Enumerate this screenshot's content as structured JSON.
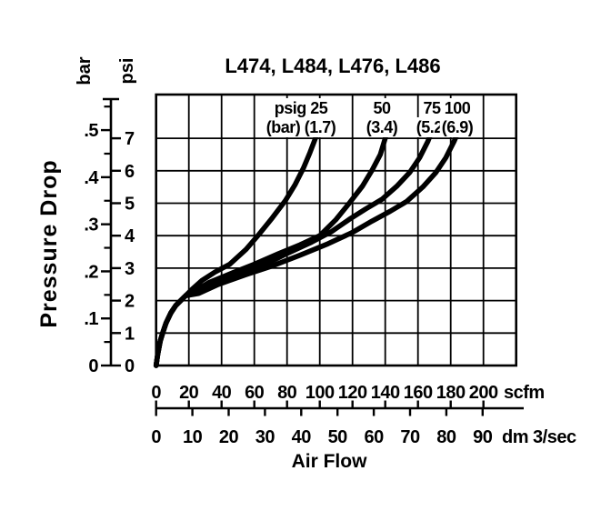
{
  "colors": {
    "ink": "#000000",
    "background": "#ffffff"
  },
  "chart_data": {
    "type": "line",
    "title": "L474, L484, L476, L486",
    "xlabel": "Air Flow",
    "ylabel": "Pressure Drop",
    "x_units": [
      "scfm",
      "dm 3/sec"
    ],
    "y_units": [
      "bar",
      "psi"
    ],
    "x_range_scfm": [
      0,
      220
    ],
    "y_range_psi": [
      0,
      8.35
    ],
    "grid": true,
    "x_tick_labels_scfm": [
      "0",
      "20",
      "40",
      "60",
      "80",
      "100",
      "120",
      "140",
      "160",
      "180",
      "200"
    ],
    "x_tick_labels_dm": [
      "0",
      "10",
      "20",
      "30",
      "40",
      "50",
      "60",
      "70",
      "80",
      "90"
    ],
    "y_tick_labels_psi": [
      "0",
      "1",
      "2",
      "3",
      "4",
      "5",
      "6",
      "7"
    ],
    "y_tick_labels_bar": [
      "0",
      ".1",
      ".2",
      ".3",
      ".4",
      ".5"
    ],
    "series": [
      {
        "name": "psig 25 (bar 1.7)",
        "label_line1": "psig 25",
        "label_line2": "(bar) (1.7)",
        "points": [
          [
            0,
            0
          ],
          [
            1,
            0.35
          ],
          [
            2.5,
            0.75
          ],
          [
            4,
            1.0
          ],
          [
            6,
            1.3
          ],
          [
            9,
            1.62
          ],
          [
            12,
            1.85
          ],
          [
            15,
            2.0
          ],
          [
            18,
            2.15
          ],
          [
            22,
            2.35
          ],
          [
            28,
            2.62
          ],
          [
            36,
            2.88
          ],
          [
            45,
            3.12
          ],
          [
            55,
            3.58
          ],
          [
            63,
            4.05
          ],
          [
            71,
            4.55
          ],
          [
            79,
            5.08
          ],
          [
            85,
            5.58
          ],
          [
            90,
            6.08
          ],
          [
            94,
            6.56
          ],
          [
            97.5,
            7.02
          ],
          [
            99.8,
            7.35
          ],
          [
            100.8,
            7.62
          ]
        ]
      },
      {
        "name": "psig 50 (bar 3.4)",
        "label_line1": "50",
        "label_line2": "(3.4)",
        "points": [
          [
            0,
            0
          ],
          [
            1,
            0.35
          ],
          [
            2.5,
            0.75
          ],
          [
            4,
            1.0
          ],
          [
            6,
            1.3
          ],
          [
            9,
            1.62
          ],
          [
            12,
            1.85
          ],
          [
            15,
            2.0
          ],
          [
            18,
            2.15
          ],
          [
            24,
            2.3
          ],
          [
            32,
            2.55
          ],
          [
            45,
            2.82
          ],
          [
            60,
            3.12
          ],
          [
            75,
            3.45
          ],
          [
            88,
            3.72
          ],
          [
            100,
            4.0
          ],
          [
            110,
            4.5
          ],
          [
            118,
            5.0
          ],
          [
            126,
            5.52
          ],
          [
            132,
            6.02
          ],
          [
            137,
            6.5
          ],
          [
            140,
            7.0
          ],
          [
            141.8,
            7.38
          ]
        ]
      },
      {
        "name": "psig 75 (bar 5.2)",
        "label_line1": "75",
        "label_line2": "(5.2)",
        "points": [
          [
            0,
            0
          ],
          [
            1,
            0.35
          ],
          [
            2.5,
            0.75
          ],
          [
            4,
            1.0
          ],
          [
            6,
            1.3
          ],
          [
            9,
            1.62
          ],
          [
            12,
            1.85
          ],
          [
            15,
            2.0
          ],
          [
            18,
            2.15
          ],
          [
            25,
            2.27
          ],
          [
            34,
            2.5
          ],
          [
            50,
            2.8
          ],
          [
            64,
            3.05
          ],
          [
            80,
            3.45
          ],
          [
            95,
            3.8
          ],
          [
            107,
            4.12
          ],
          [
            118,
            4.5
          ],
          [
            128,
            4.82
          ],
          [
            138,
            5.12
          ],
          [
            147,
            5.52
          ],
          [
            155,
            5.95
          ],
          [
            161,
            6.4
          ],
          [
            166,
            6.9
          ],
          [
            169.5,
            7.35
          ],
          [
            171,
            7.6
          ]
        ]
      },
      {
        "name": "psig 100 (bar 6.9)",
        "label_line1": "100",
        "label_line2": "(6.9)",
        "points": [
          [
            0,
            0
          ],
          [
            1,
            0.35
          ],
          [
            2.5,
            0.75
          ],
          [
            4,
            1.0
          ],
          [
            6,
            1.3
          ],
          [
            9,
            1.62
          ],
          [
            12,
            1.85
          ],
          [
            15,
            2.0
          ],
          [
            18,
            2.15
          ],
          [
            26,
            2.22
          ],
          [
            38,
            2.5
          ],
          [
            55,
            2.8
          ],
          [
            70,
            3.05
          ],
          [
            88,
            3.4
          ],
          [
            105,
            3.75
          ],
          [
            120,
            4.1
          ],
          [
            132,
            4.45
          ],
          [
            143,
            4.75
          ],
          [
            153,
            5.05
          ],
          [
            163,
            5.5
          ],
          [
            171,
            5.95
          ],
          [
            177,
            6.4
          ],
          [
            182,
            6.9
          ],
          [
            185.5,
            7.3
          ]
        ]
      }
    ]
  }
}
